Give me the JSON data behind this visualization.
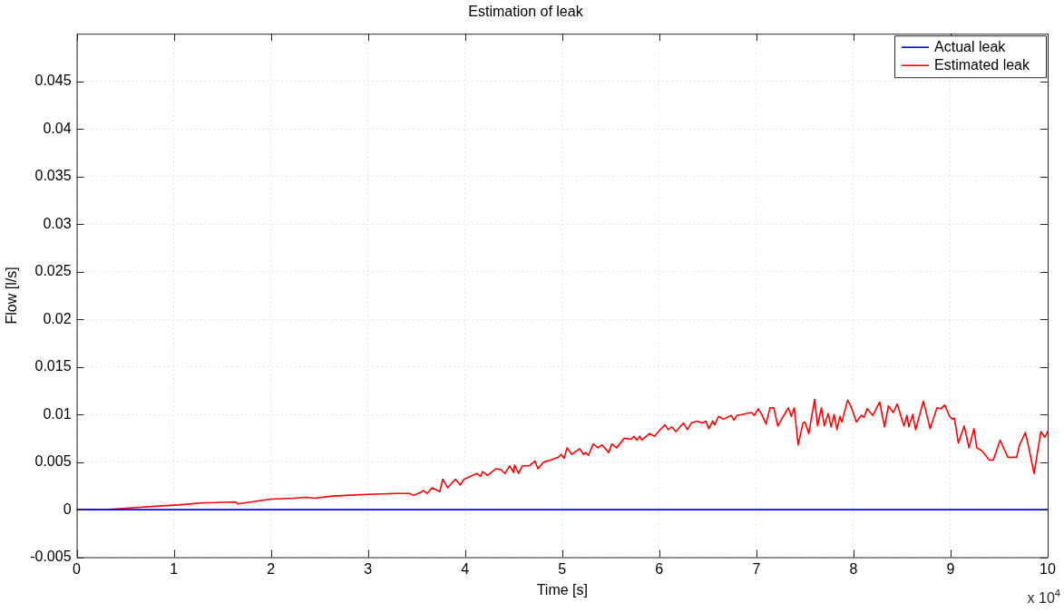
{
  "chart_data": {
    "type": "line",
    "title": "Estimation of leak",
    "xlabel": "Time [s]",
    "ylabel": "Flow [l/s]",
    "xlim": [
      0,
      10
    ],
    "xticks": [
      0,
      1,
      2,
      3,
      4,
      5,
      6,
      7,
      8,
      9,
      10
    ],
    "ylim": [
      -0.005,
      0.05
    ],
    "yticks": [
      -0.005,
      0,
      0.005,
      0.01,
      0.015,
      0.02,
      0.025,
      0.03,
      0.035,
      0.04,
      0.045
    ],
    "grid": true,
    "legend": "top right",
    "annotations": [
      "x 10$^{4}$"
    ],
    "series": [
      {
        "name": "Actual leak",
        "color": "#0000ff",
        "x": [
          0,
          10
        ],
        "values": [
          0,
          0
        ]
      },
      {
        "name": "Estimated leak",
        "color": "#ff0000",
        "x": [
          0,
          0.3,
          0.58,
          0.89,
          1.05,
          1.28,
          1.64,
          1.66,
          2,
          2.23,
          2.36,
          2.45,
          2.61,
          2.78,
          3,
          3.29,
          3.35,
          3.43,
          3.47,
          3.54,
          3.57,
          3.61,
          3.66,
          3.74,
          3.77,
          3.82,
          3.9,
          3.95,
          3.99,
          4.12,
          4.16,
          4.18,
          4.23,
          4.32,
          4.37,
          4.41,
          4.46,
          4.5,
          4.51,
          4.55,
          4.59,
          4.66,
          4.72,
          4.75,
          4.81,
          4.88,
          4.96,
          4.99,
          5.02,
          5.05,
          5.1,
          5.18,
          5.22,
          5.24,
          5.27,
          5.32,
          5.37,
          5.41,
          5.48,
          5.51,
          5.56,
          5.64,
          5.71,
          5.74,
          5.77,
          5.8,
          5.82,
          5.9,
          5.95,
          6,
          6.06,
          6.09,
          6.13,
          6.17,
          6.25,
          6.29,
          6.33,
          6.39,
          6.44,
          6.48,
          6.51,
          6.55,
          6.57,
          6.61,
          6.66,
          6.74,
          6.77,
          6.8,
          6.95,
          6.98,
          7.02,
          7.06,
          7.1,
          7.14,
          7.18,
          7.22,
          7.26,
          7.33,
          7.36,
          7.39,
          7.43,
          7.48,
          7.5,
          7.54,
          7.6,
          7.63,
          7.67,
          7.7,
          7.74,
          7.77,
          7.8,
          7.83,
          7.86,
          7.88,
          7.94,
          7.98,
          8.03,
          8.08,
          8.11,
          8.14,
          8.2,
          8.27,
          8.32,
          8.36,
          8.41,
          8.45,
          8.52,
          8.55,
          8.57,
          8.61,
          8.64,
          8.72,
          8.79,
          8.86,
          8.9,
          8.94,
          8.99,
          9.02,
          9.04,
          9.08,
          9.14,
          9.19,
          9.24,
          9.27,
          9.32,
          9.4,
          9.44,
          9.51,
          9.59,
          9.68,
          9.71,
          9.77,
          9.8,
          9.86,
          9.93,
          9.97,
          10
        ],
        "values": [
          0,
          0,
          0.0002,
          0.0004,
          0.0005,
          0.0007,
          0.0008,
          0.0006,
          0.0011,
          0.0012,
          0.0013,
          0.0012,
          0.0014,
          0.0015,
          0.0016,
          0.0017,
          0.0017,
          0.0017,
          0.0015,
          0.0018,
          0.002,
          0.0017,
          0.0023,
          0.0019,
          0.0032,
          0.0023,
          0.0032,
          0.0026,
          0.0032,
          0.0038,
          0.0035,
          0.004,
          0.0036,
          0.0043,
          0.0042,
          0.0038,
          0.0046,
          0.0039,
          0.0047,
          0.0038,
          0.0046,
          0.0046,
          0.0051,
          0.0043,
          0.005,
          0.0052,
          0.0055,
          0.0058,
          0.0054,
          0.0065,
          0.0058,
          0.0064,
          0.0058,
          0.006,
          0.0057,
          0.0069,
          0.0065,
          0.0068,
          0.006,
          0.0069,
          0.0065,
          0.0075,
          0.0074,
          0.0077,
          0.0073,
          0.0077,
          0.0073,
          0.008,
          0.0077,
          0.0083,
          0.0089,
          0.0084,
          0.0087,
          0.0082,
          0.0091,
          0.0084,
          0.0091,
          0.0093,
          0.0091,
          0.0093,
          0.0085,
          0.0093,
          0.0089,
          0.0098,
          0.0095,
          0.0099,
          0.0094,
          0.0099,
          0.0102,
          0.0099,
          0.0106,
          0.0099,
          0.009,
          0.0107,
          0.0107,
          0.0088,
          0.0095,
          0.0107,
          0.0098,
          0.0107,
          0.0068,
          0.0091,
          0.0092,
          0.008,
          0.0116,
          0.0088,
          0.0107,
          0.0088,
          0.0101,
          0.0087,
          0.01,
          0.0084,
          0.0098,
          0.0092,
          0.0115,
          0.0107,
          0.0092,
          0.0099,
          0.0097,
          0.0106,
          0.0099,
          0.0113,
          0.0087,
          0.0109,
          0.0102,
          0.0111,
          0.0088,
          0.0099,
          0.0087,
          0.01,
          0.0084,
          0.0114,
          0.0085,
          0.0107,
          0.0106,
          0.011,
          0.0098,
          0.0095,
          0.0096,
          0.007,
          0.0088,
          0.0065,
          0.0085,
          0.0065,
          0.0062,
          0.0052,
          0.0052,
          0.0073,
          0.0055,
          0.0055,
          0.0068,
          0.0081,
          0.0068,
          0.0038,
          0.0082,
          0.0076,
          0.0082
        ]
      }
    ]
  }
}
